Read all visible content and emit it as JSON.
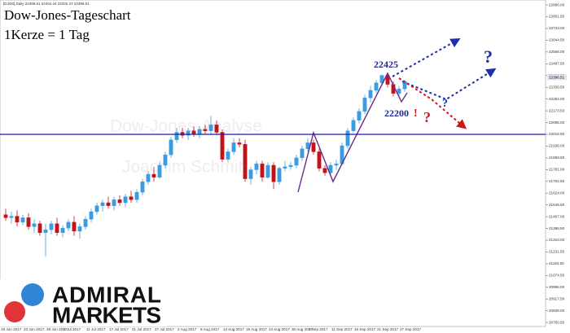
{
  "header": "[DJI30],Daily  22369.51 22404.44 22332.37 22396.51",
  "chart_data": {
    "type": "candlestick",
    "title": "Dow-Jones-Tageschart",
    "subtitle": "1Kerze = 1 Tag",
    "watermarks": [
      "Dow-Jones-Analyse",
      "Joachim Schmitt"
    ],
    "categories": [
      "19 Jun 2017",
      null,
      null,
      null,
      "23 Jun 2017",
      null,
      null,
      null,
      "29 Jun 2017",
      null,
      null,
      "5 Jul 2017",
      null,
      null,
      null,
      "11 Jul 2017",
      null,
      null,
      null,
      "17 Jul 2017",
      null,
      null,
      null,
      "21 Jul 2017",
      null,
      null,
      null,
      "27 Jul 2017",
      null,
      null,
      null,
      "2 Aug 2017",
      null,
      null,
      null,
      "8 Aug 2017",
      null,
      null,
      null,
      "14 Aug 2017",
      null,
      null,
      null,
      "18 Aug 2017",
      null,
      null,
      null,
      "24 Aug 2017",
      null,
      null,
      null,
      "30 Aug 2017",
      null,
      null,
      "5 Sep 2017",
      null,
      null,
      null,
      "11 Sep 2017",
      null,
      null,
      null,
      "15 Sep 2017",
      null,
      null,
      null,
      "21 Sep 2017",
      null,
      null,
      null,
      "27 Sep 2017"
    ],
    "open": [
      21480,
      21460,
      21470,
      21430,
      21460,
      21400,
      21420,
      21360,
      21380,
      21420,
      21360,
      21390,
      21430,
      21370,
      21400,
      21450,
      21500,
      21540,
      21560,
      21540,
      21580,
      21560,
      21600,
      21580,
      21630,
      21700,
      21750,
      21730,
      21810,
      21880,
      21980,
      22030,
      22010,
      22040,
      22020,
      22050,
      22040,
      22080,
      22030,
      21850,
      21900,
      21960,
      21950,
      21720,
      21780,
      21820,
      21730,
      21810,
      21700,
      21790,
      21800,
      21810,
      21860,
      21920,
      21960,
      21900,
      21790,
      21760,
      21810,
      21820,
      21940,
      22040,
      22110,
      22170,
      22260,
      22310,
      22360,
      22410,
      22350,
      22290,
      22320
    ],
    "high": [
      21520,
      21500,
      21510,
      21480,
      21490,
      21450,
      21440,
      21420,
      21440,
      21460,
      21410,
      21450,
      21470,
      21420,
      21470,
      21520,
      21560,
      21580,
      21600,
      21600,
      21610,
      21620,
      21640,
      21650,
      21720,
      21770,
      21800,
      21830,
      21900,
      22000,
      22060,
      22060,
      22060,
      22070,
      22070,
      22080,
      22140,
      22110,
      22050,
      21920,
      21990,
      21990,
      21980,
      21800,
      21840,
      21840,
      21830,
      21830,
      21800,
      21840,
      21830,
      21880,
      21940,
      21990,
      21980,
      21920,
      21810,
      21830,
      21850,
      21960,
      22060,
      22130,
      22190,
      22280,
      22340,
      22380,
      22415,
      22425,
      22370,
      22340,
      22380
    ],
    "low": [
      21440,
      21420,
      21400,
      21410,
      21380,
      21360,
      21340,
      21200,
      21350,
      21340,
      21330,
      21370,
      21340,
      21320,
      21380,
      21430,
      21480,
      21500,
      21520,
      21510,
      21540,
      21530,
      21560,
      21560,
      21610,
      21680,
      21700,
      21720,
      21790,
      21860,
      21960,
      21990,
      21980,
      22000,
      21990,
      22020,
      22010,
      22010,
      21830,
      21830,
      21880,
      21930,
      21700,
      21680,
      21750,
      21700,
      21720,
      21650,
      21680,
      21770,
      21780,
      21790,
      21840,
      21900,
      21880,
      21770,
      21740,
      21750,
      21780,
      21810,
      21920,
      22030,
      22090,
      22150,
      22230,
      22290,
      22340,
      22330,
      22270,
      22270,
      22300
    ],
    "close": [
      21460,
      21470,
      21430,
      21460,
      21400,
      21420,
      21360,
      21380,
      21420,
      21360,
      21390,
      21430,
      21370,
      21400,
      21450,
      21500,
      21540,
      21560,
      21540,
      21580,
      21560,
      21600,
      21580,
      21630,
      21700,
      21750,
      21730,
      21810,
      21880,
      21980,
      22030,
      22010,
      22040,
      22020,
      22050,
      22040,
      22080,
      22030,
      21850,
      21900,
      21960,
      21950,
      21720,
      21780,
      21820,
      21730,
      21810,
      21700,
      21790,
      21800,
      21810,
      21860,
      21920,
      21960,
      21900,
      21790,
      21760,
      21810,
      21820,
      21940,
      22040,
      22110,
      22170,
      22260,
      22310,
      22360,
      22410,
      22350,
      22290,
      22320,
      22370
    ],
    "up_color": "#3d9be0",
    "down_color": "#c0141c",
    "ylim": [
      20734,
      22913
    ],
    "yticks": [
      {
        "value": 22880,
        "label": "22880.00"
      },
      {
        "value": 22801.5,
        "label": "22801.50"
      },
      {
        "value": 22723,
        "label": "22723.00"
      },
      {
        "value": 22644.5,
        "label": "22644.50"
      },
      {
        "value": 22566,
        "label": "22566.00"
      },
      {
        "value": 22487.5,
        "label": "22487.50"
      },
      {
        "value": 22409,
        "label": "22409.00"
      },
      {
        "value": 22330.5,
        "label": "22330.50"
      },
      {
        "value": 22252,
        "label": "22252.00"
      },
      {
        "value": 22173.5,
        "label": "22173.50"
      },
      {
        "value": 22095,
        "label": "22095.00"
      },
      {
        "value": 22016.5,
        "label": "22016.50"
      },
      {
        "value": 21938,
        "label": "21938.00"
      },
      {
        "value": 21859.5,
        "label": "21859.50"
      },
      {
        "value": 21781,
        "label": "21781.00"
      },
      {
        "value": 21702.5,
        "label": "21702.50"
      },
      {
        "value": 21624,
        "label": "21624.00"
      },
      {
        "value": 21545.5,
        "label": "21545.50"
      },
      {
        "value": 21467,
        "label": "21467.00"
      },
      {
        "value": 21388.5,
        "label": "21388.50"
      },
      {
        "value": 21310,
        "label": "21310.00"
      },
      {
        "value": 21231.5,
        "label": "21231.50"
      },
      {
        "value": 21153,
        "label": "21153.00"
      },
      {
        "value": 21074.5,
        "label": "21074.50"
      },
      {
        "value": 20996,
        "label": "20996.00"
      },
      {
        "value": 20917.5,
        "label": "20917.50"
      },
      {
        "value": 20839,
        "label": "20839.00"
      },
      {
        "value": 20760.5,
        "label": "20760.50"
      }
    ],
    "last_price": 22396.51,
    "hlines": [
      {
        "value": 22016.5,
        "color": "#1c1ca6"
      }
    ],
    "annotations": [
      {
        "text": "22425",
        "color": "#1f2a8a"
      },
      {
        "text": "22200",
        "color": "#1f2a8a"
      },
      {
        "text": "!",
        "color": "#d0141e"
      },
      {
        "text": "?",
        "color": "#d0141e"
      },
      {
        "text": "?",
        "color": "#1a2fa8"
      },
      {
        "text": "?",
        "color": "#1a2fa8"
      }
    ]
  },
  "logo": {
    "line1": "ADMIRAL",
    "line2": "MARKETS"
  }
}
